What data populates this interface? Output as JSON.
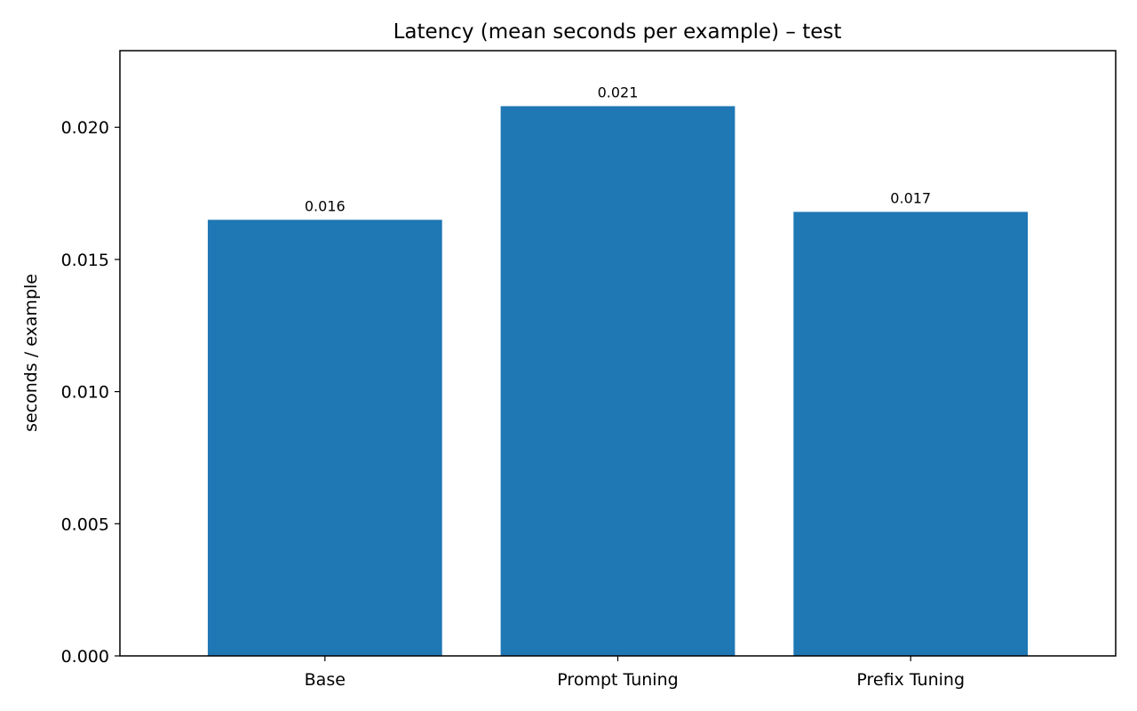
{
  "chart_data": {
    "type": "bar",
    "title": "Latency (mean seconds per example) – test",
    "xlabel": "",
    "ylabel": "seconds / example",
    "categories": [
      "Base",
      "Prompt Tuning",
      "Prefix Tuning"
    ],
    "values": [
      0.0165,
      0.0208,
      0.0168
    ],
    "data_labels": [
      "0.016",
      "0.021",
      "0.017"
    ],
    "ylim": [
      0,
      0.0229
    ],
    "yticks": [
      0.0,
      0.005,
      0.01,
      0.015,
      0.02
    ],
    "ytick_labels": [
      "0.000",
      "0.005",
      "0.010",
      "0.015",
      "0.020"
    ],
    "bar_color": "#1f77b4",
    "grid": false,
    "legend": "none"
  }
}
